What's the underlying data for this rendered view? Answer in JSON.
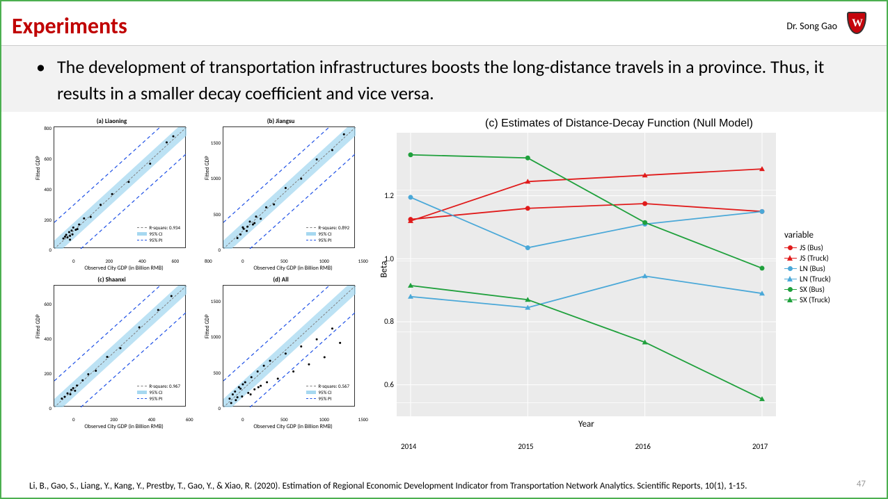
{
  "header": {
    "title": "Experiments",
    "author": "Dr. Song Gao"
  },
  "bullet_text": "The development of transportation infrastructures boosts the long-distance travels in a province. Thus, it results in a smaller decay coefficient and vice versa.",
  "scatter_panels": [
    {
      "title": "(a) Liaoning",
      "rsquare": "R-square: 0.934",
      "xmax": 800,
      "ymax": 800,
      "xticks": [
        0,
        200,
        400,
        600,
        800
      ],
      "yticks": [
        0,
        200,
        400,
        600,
        800
      ],
      "ylabel": "Fitted GDP",
      "xlabel": "Observed City GDP (in Billion RMB)",
      "points": [
        [
          55,
          68
        ],
        [
          65,
          80
        ],
        [
          72,
          92
        ],
        [
          80,
          75
        ],
        [
          90,
          110
        ],
        [
          95,
          85
        ],
        [
          105,
          120
        ],
        [
          115,
          140
        ],
        [
          130,
          125
        ],
        [
          150,
          160
        ],
        [
          180,
          200
        ],
        [
          220,
          210
        ],
        [
          280,
          290
        ],
        [
          350,
          360
        ],
        [
          450,
          440
        ],
        [
          580,
          560
        ],
        [
          680,
          700
        ],
        [
          720,
          740
        ],
        [
          95,
          60
        ],
        [
          110,
          95
        ],
        [
          140,
          130
        ]
      ]
    },
    {
      "title": "(b) Jiangsu",
      "rsquare": "R-square: 0.892",
      "xmax": 1700,
      "ymax": 1700,
      "xticks": [
        0,
        500,
        1000,
        1500
      ],
      "yticks": [
        0,
        500,
        1000,
        1500
      ],
      "ylabel": "Fitted GDP",
      "xlabel": "Observed City GDP (in Billion RMB)",
      "points": [
        [
          180,
          150
        ],
        [
          220,
          200
        ],
        [
          260,
          280
        ],
        [
          300,
          250
        ],
        [
          340,
          380
        ],
        [
          380,
          340
        ],
        [
          420,
          450
        ],
        [
          480,
          420
        ],
        [
          550,
          580
        ],
        [
          650,
          620
        ],
        [
          800,
          850
        ],
        [
          1000,
          980
        ],
        [
          1200,
          1250
        ],
        [
          1400,
          1380
        ],
        [
          1550,
          1600
        ],
        [
          310,
          310
        ],
        [
          400,
          360
        ],
        [
          250,
          300
        ]
      ]
    },
    {
      "title": "(c) Shaanxi",
      "rsquare": "R-square: 0.967",
      "xmax": 700,
      "ymax": 700,
      "xticks": [
        0,
        200,
        400,
        600
      ],
      "yticks": [
        0,
        200,
        400,
        600
      ],
      "ylabel": "Fitted GDP",
      "xlabel": "Observed City GDP (in Billion RMB)",
      "points": [
        [
          40,
          50
        ],
        [
          55,
          60
        ],
        [
          70,
          80
        ],
        [
          85,
          75
        ],
        [
          100,
          110
        ],
        [
          120,
          125
        ],
        [
          150,
          155
        ],
        [
          180,
          190
        ],
        [
          220,
          210
        ],
        [
          280,
          290
        ],
        [
          350,
          340
        ],
        [
          450,
          460
        ],
        [
          550,
          560
        ],
        [
          620,
          640
        ],
        [
          90,
          100
        ],
        [
          110,
          95
        ]
      ]
    },
    {
      "title": "(d) All",
      "rsquare": "R-square: 0.567",
      "xmax": 1700,
      "ymax": 1700,
      "xticks": [
        0,
        500,
        1000,
        1500
      ],
      "yticks": [
        0,
        500,
        1000,
        1500
      ],
      "ylabel": "Fitted GDP",
      "xlabel": "Observed City GDP (in Billion RMB)",
      "points": [
        [
          80,
          120
        ],
        [
          120,
          180
        ],
        [
          160,
          100
        ],
        [
          200,
          280
        ],
        [
          240,
          150
        ],
        [
          280,
          350
        ],
        [
          320,
          200
        ],
        [
          360,
          420
        ],
        [
          400,
          250
        ],
        [
          440,
          500
        ],
        [
          480,
          300
        ],
        [
          520,
          580
        ],
        [
          560,
          350
        ],
        [
          600,
          650
        ],
        [
          700,
          400
        ],
        [
          800,
          750
        ],
        [
          900,
          500
        ],
        [
          1000,
          850
        ],
        [
          1100,
          600
        ],
        [
          1200,
          950
        ],
        [
          1300,
          700
        ],
        [
          1400,
          1100
        ],
        [
          1500,
          900
        ],
        [
          100,
          60
        ],
        [
          150,
          220
        ],
        [
          250,
          320
        ],
        [
          350,
          180
        ],
        [
          450,
          280
        ],
        [
          180,
          140
        ],
        [
          220,
          260
        ]
      ]
    }
  ],
  "scatter_legend": {
    "ci": "95% CI",
    "pi": "95% PI"
  },
  "scatter_colors": {
    "fit_line": "#808080",
    "ci_fill": "#a6d8f0",
    "pi_line": "#1e50e6",
    "point": "#000"
  },
  "line_chart": {
    "title": "(c) Estimates of Distance-Decay Function (Null Model)",
    "ylabel": "Beta",
    "xlabel": "Year",
    "years": [
      2014,
      2015,
      2016,
      2017
    ],
    "ylim": [
      0.5,
      1.4
    ],
    "yticks": [
      0.6,
      0.8,
      1.0,
      1.2
    ],
    "legend_title": "variable",
    "series": [
      {
        "name": "JS (Bus)",
        "color": "#e01b1b",
        "marker": "circle",
        "values": [
          1.125,
          1.16,
          1.175,
          1.15
        ]
      },
      {
        "name": "JS (Truck)",
        "color": "#e01b1b",
        "marker": "triangle",
        "values": [
          1.12,
          1.245,
          1.265,
          1.285
        ]
      },
      {
        "name": "LN (Bus)",
        "color": "#4aa8d8",
        "marker": "circle",
        "values": [
          1.195,
          1.035,
          1.11,
          1.15
        ]
      },
      {
        "name": "LN (Truck)",
        "color": "#4aa8d8",
        "marker": "triangle",
        "values": [
          0.88,
          0.845,
          0.945,
          0.89
        ]
      },
      {
        "name": "SX (Bus)",
        "color": "#1fa03c",
        "marker": "circle",
        "values": [
          1.33,
          1.32,
          1.115,
          0.97
        ]
      },
      {
        "name": "SX (Truck)",
        "color": "#1fa03c",
        "marker": "triangle",
        "values": [
          0.915,
          0.87,
          0.735,
          0.555
        ]
      }
    ],
    "bg": "#ebebeb",
    "grid": "#ffffff"
  },
  "citation": "Li, B., Gao, S., Liang, Y., Kang, Y., Prestby, T., Gao, Y., & Xiao, R. (2020). Estimation of Regional Economic Development Indicator from Transportation Network Analytics. Scientific Reports, 10(1), 1-15.",
  "page_number": "47"
}
